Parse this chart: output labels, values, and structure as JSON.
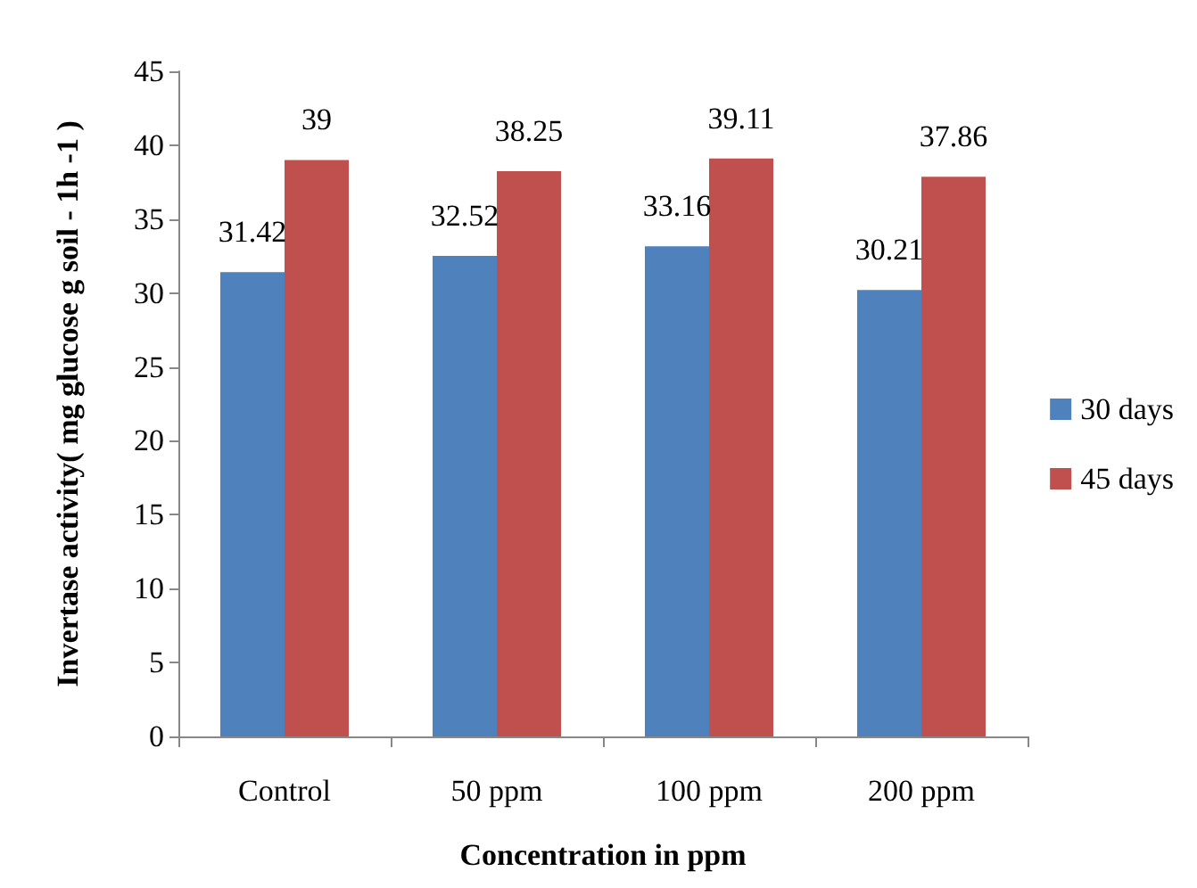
{
  "chart_data": {
    "type": "bar",
    "xlabel": "Concentration in ppm",
    "ylabel": "Invertase activity( mg glucose g soil - 1h -1 )",
    "categories": [
      "Control",
      "50 ppm",
      "100 ppm",
      "200 ppm"
    ],
    "series": [
      {
        "name": "30 days",
        "color": "#4f81bd",
        "values": [
          31.42,
          32.52,
          33.16,
          30.21
        ]
      },
      {
        "name": "45 days",
        "color": "#c0504d",
        "values": [
          39,
          38.25,
          39.11,
          37.86
        ]
      }
    ],
    "ylim": [
      0,
      45
    ],
    "yticks": [
      0,
      5,
      10,
      15,
      20,
      25,
      30,
      35,
      40,
      45
    ],
    "data_labels": true,
    "grid": false,
    "legend": "right"
  }
}
